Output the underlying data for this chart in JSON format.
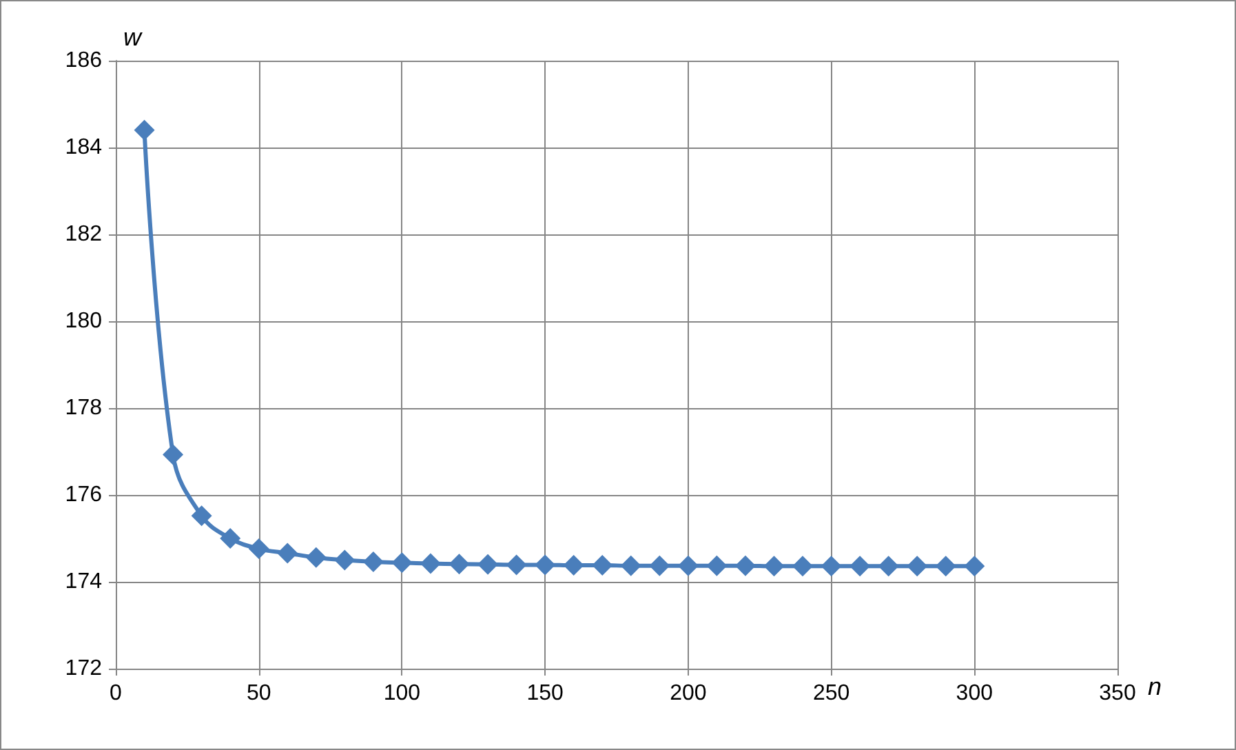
{
  "chart_data": {
    "type": "line",
    "xlabel": "n",
    "ylabel": "w",
    "x": [
      10,
      20,
      30,
      40,
      50,
      60,
      70,
      80,
      90,
      100,
      110,
      120,
      130,
      140,
      150,
      160,
      170,
      180,
      190,
      200,
      210,
      220,
      230,
      240,
      250,
      260,
      270,
      280,
      290,
      300
    ],
    "series": [
      {
        "color": "#4a7ebb",
        "values": [
          184.4,
          176.93,
          175.52,
          175.0,
          174.76,
          174.66,
          174.56,
          174.5,
          174.46,
          174.44,
          174.42,
          174.41,
          174.4,
          174.39,
          174.39,
          174.38,
          174.38,
          174.37,
          174.37,
          174.37,
          174.37,
          174.37,
          174.36,
          174.36,
          174.36,
          174.36,
          174.36,
          174.36,
          174.36,
          174.36
        ]
      }
    ],
    "xlim": [
      0,
      350
    ],
    "xticks": [
      0,
      50,
      100,
      150,
      200,
      250,
      300,
      350
    ],
    "ylim": [
      172,
      186
    ],
    "yticks": [
      172,
      174,
      176,
      178,
      180,
      182,
      184,
      186
    ],
    "grid": true,
    "marker": "diamond",
    "line_style": "solid"
  }
}
